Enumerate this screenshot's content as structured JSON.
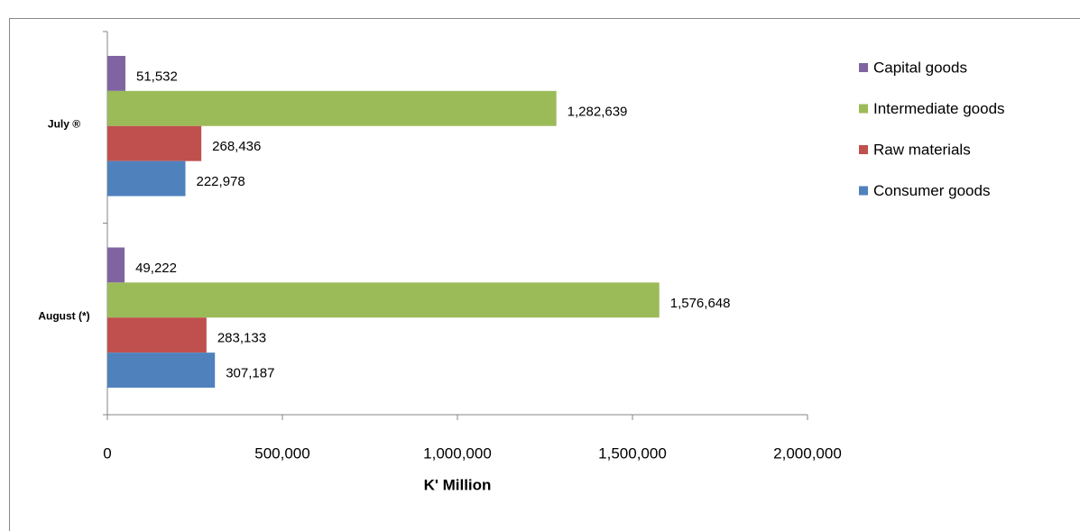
{
  "chart_data": {
    "type": "bar",
    "orientation": "horizontal",
    "xlabel": "K' Million",
    "categories": [
      "July ®",
      "August (*)"
    ],
    "series": [
      {
        "name": "Capital goods",
        "color": "#8064a2",
        "values": [
          51532,
          49222
        ],
        "value_labels": [
          "51,532",
          "49,222"
        ]
      },
      {
        "name": "Intermediate goods",
        "color": "#9bbb59",
        "values": [
          1282639,
          1576648
        ],
        "value_labels": [
          "1,282,639",
          "1,576,648"
        ]
      },
      {
        "name": "Raw materials",
        "color": "#c0504d",
        "values": [
          268436,
          283133
        ],
        "value_labels": [
          "268,436",
          "283,133"
        ]
      },
      {
        "name": "Consumer goods",
        "color": "#4f81bd",
        "values": [
          222978,
          307187
        ],
        "value_labels": [
          "222,978",
          "307,187"
        ]
      }
    ],
    "xlim": [
      0,
      2000000
    ],
    "xticks": [
      0,
      {
        "value": 500000,
        "label": "500,000"
      },
      {
        "value": 1000000,
        "label": "1,000,000"
      },
      {
        "value": 1500000,
        "label": "1,500,000"
      },
      {
        "value": 2000000,
        "label": "2,000,000"
      }
    ],
    "legend": "right"
  }
}
